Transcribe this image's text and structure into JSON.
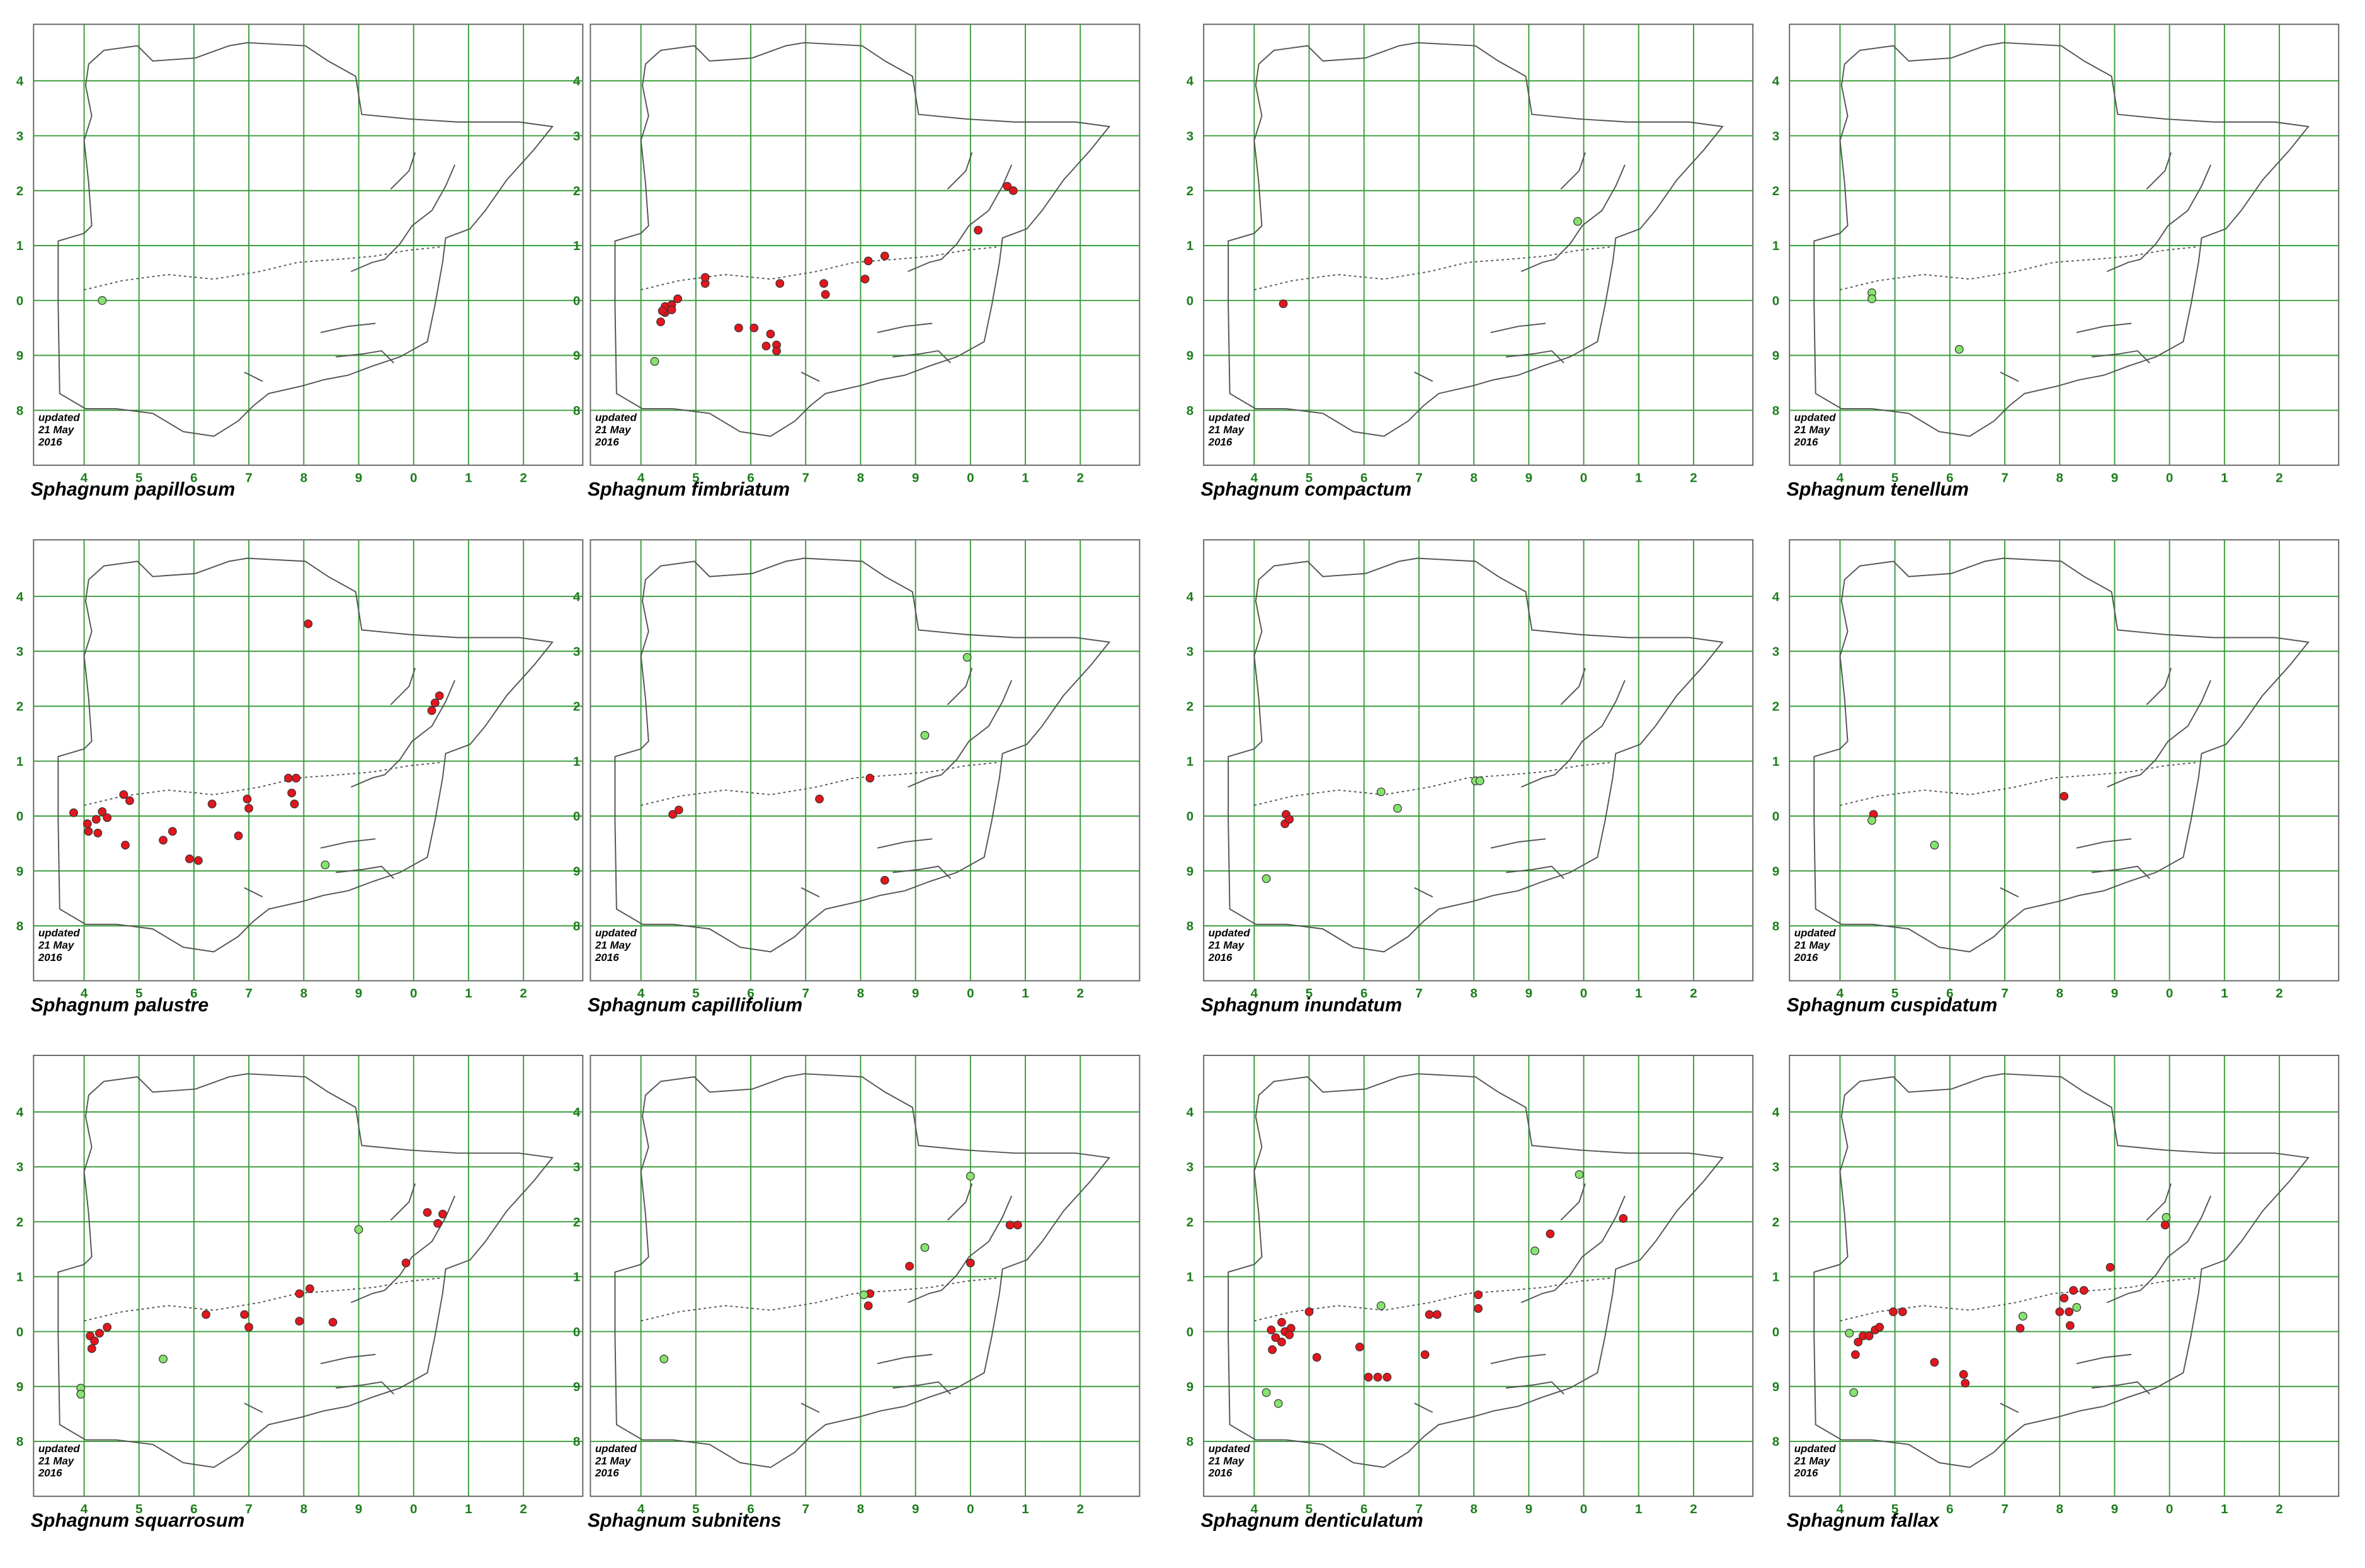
{
  "chart_data": [
    {
      "type": "scatter",
      "title": "Sphagnum papillosum",
      "note": [
        "updated",
        "21 May",
        "2016"
      ],
      "xlim": [
        3.08,
        13.08
      ],
      "ylim": [
        7,
        15.03
      ],
      "xticks": [
        4,
        5,
        6,
        7,
        8,
        9,
        {
          "value": 10,
          "label": "0"
        },
        {
          "value": 11,
          "label": "1"
        },
        {
          "value": 12,
          "label": "2"
        }
      ],
      "yticks": [
        8,
        9,
        {
          "value": 10,
          "label": "0"
        },
        {
          "value": 11,
          "label": "1"
        },
        {
          "value": 12,
          "label": "2"
        },
        {
          "value": 13,
          "label": "3"
        },
        {
          "value": 14,
          "label": "4"
        }
      ],
      "series": [
        {
          "color": "#e3161e",
          "x": [],
          "y": []
        },
        {
          "color": "#86e36e",
          "x": [
            4.33
          ],
          "y": [
            10.0
          ]
        }
      ]
    },
    {
      "type": "scatter",
      "title": "Sphagnum fimbriatum",
      "note": [
        "updated",
        "21 May",
        "2016"
      ],
      "xlim": [
        3.08,
        13.08
      ],
      "ylim": [
        7,
        15.03
      ],
      "xticks": [
        4,
        5,
        6,
        7,
        8,
        9,
        {
          "value": 10,
          "label": "0"
        },
        {
          "value": 11,
          "label": "1"
        },
        {
          "value": 12,
          "label": "2"
        }
      ],
      "yticks": [
        8,
        9,
        {
          "value": 10,
          "label": "0"
        },
        {
          "value": 11,
          "label": "1"
        },
        {
          "value": 12,
          "label": "2"
        },
        {
          "value": 13,
          "label": "3"
        },
        {
          "value": 14,
          "label": "4"
        }
      ],
      "series": [
        {
          "color": "#e3161e",
          "x": [
            4.36,
            4.44,
            4.44,
            4.56,
            4.67,
            4.56,
            4.39,
            5.17,
            5.17,
            6.53,
            7.33,
            7.36,
            8.08,
            8.14,
            8.44,
            5.78,
            6.06,
            6.28,
            6.36,
            6.47,
            6.47,
            10.14,
            10.67,
            10.78
          ],
          "y": [
            9.61,
            9.78,
            9.89,
            9.92,
            10.03,
            9.83,
            9.81,
            10.31,
            10.42,
            10.31,
            10.31,
            10.11,
            10.39,
            10.72,
            10.81,
            9.5,
            9.5,
            9.17,
            9.39,
            9.19,
            9.08,
            11.28,
            12.08,
            12.0
          ]
        },
        {
          "color": "#86e36e",
          "x": [
            4.25
          ],
          "y": [
            8.89
          ]
        }
      ]
    },
    {
      "type": "scatter",
      "title": "Sphagnum compactum",
      "note": [
        "updated",
        "21 May",
        "2016"
      ],
      "xlim": [
        3.08,
        13.08
      ],
      "ylim": [
        7,
        15.03
      ],
      "xticks": [
        4,
        5,
        6,
        7,
        8,
        9,
        {
          "value": 10,
          "label": "0"
        },
        {
          "value": 11,
          "label": "1"
        },
        {
          "value": 12,
          "label": "2"
        }
      ],
      "yticks": [
        8,
        9,
        {
          "value": 10,
          "label": "0"
        },
        {
          "value": 11,
          "label": "1"
        },
        {
          "value": 12,
          "label": "2"
        },
        {
          "value": 13,
          "label": "3"
        },
        {
          "value": 14,
          "label": "4"
        }
      ],
      "series": [
        {
          "color": "#e3161e",
          "x": [
            4.53
          ],
          "y": [
            9.94
          ]
        },
        {
          "color": "#86e36e",
          "x": [
            9.89
          ],
          "y": [
            11.44
          ]
        }
      ]
    },
    {
      "type": "scatter",
      "title": "Sphagnum tenellum",
      "note": [
        "updated",
        "21 May",
        "2016"
      ],
      "xlim": [
        3.08,
        13.08
      ],
      "ylim": [
        7,
        15.03
      ],
      "xticks": [
        4,
        5,
        6,
        7,
        8,
        9,
        {
          "value": 10,
          "label": "0"
        },
        {
          "value": 11,
          "label": "1"
        },
        {
          "value": 12,
          "label": "2"
        }
      ],
      "yticks": [
        8,
        9,
        {
          "value": 10,
          "label": "0"
        },
        {
          "value": 11,
          "label": "1"
        },
        {
          "value": 12,
          "label": "2"
        },
        {
          "value": 13,
          "label": "3"
        },
        {
          "value": 14,
          "label": "4"
        }
      ],
      "series": [
        {
          "color": "#e3161e",
          "x": [],
          "y": []
        },
        {
          "color": "#86e36e",
          "x": [
            4.58,
            4.58,
            6.17
          ],
          "y": [
            10.14,
            10.03,
            9.11
          ]
        }
      ]
    },
    {
      "type": "scatter",
      "title": "Sphagnum palustre",
      "note": [
        "updated",
        "21 May",
        "2016"
      ],
      "xlim": [
        3.08,
        13.08
      ],
      "ylim": [
        7,
        15.03
      ],
      "xticks": [
        4,
        5,
        6,
        7,
        8,
        9,
        {
          "value": 10,
          "label": "0"
        },
        {
          "value": 11,
          "label": "1"
        },
        {
          "value": 12,
          "label": "2"
        }
      ],
      "yticks": [
        8,
        9,
        {
          "value": 10,
          "label": "0"
        },
        {
          "value": 11,
          "label": "1"
        },
        {
          "value": 12,
          "label": "2"
        },
        {
          "value": 13,
          "label": "3"
        },
        {
          "value": 14,
          "label": "4"
        }
      ],
      "series": [
        {
          "color": "#e3161e",
          "x": [
            3.81,
            4.06,
            4.08,
            4.22,
            4.33,
            4.42,
            4.25,
            4.72,
            4.83,
            4.75,
            5.44,
            5.61,
            5.92,
            6.08,
            6.33,
            6.81,
            6.97,
            7.0,
            7.72,
            7.86,
            7.78,
            7.83,
            8.08,
            10.39,
            10.47,
            10.33
          ],
          "y": [
            10.06,
            9.86,
            9.72,
            9.94,
            10.08,
            9.97,
            9.69,
            10.39,
            10.28,
            9.47,
            9.56,
            9.72,
            9.22,
            9.19,
            10.22,
            9.64,
            10.31,
            10.14,
            10.69,
            10.69,
            10.42,
            10.22,
            13.5,
            12.06,
            12.19,
            11.92
          ]
        },
        {
          "color": "#86e36e",
          "x": [
            8.39
          ],
          "y": [
            9.11
          ]
        }
      ]
    },
    {
      "type": "scatter",
      "title": "Sphagnum capillifolium",
      "note": [
        "updated",
        "21 May",
        "2016"
      ],
      "xlim": [
        3.08,
        13.08
      ],
      "ylim": [
        7,
        15.03
      ],
      "xticks": [
        4,
        5,
        6,
        7,
        8,
        9,
        {
          "value": 10,
          "label": "0"
        },
        {
          "value": 11,
          "label": "1"
        },
        {
          "value": 12,
          "label": "2"
        }
      ],
      "yticks": [
        8,
        9,
        {
          "value": 10,
          "label": "0"
        },
        {
          "value": 11,
          "label": "1"
        },
        {
          "value": 12,
          "label": "2"
        },
        {
          "value": 13,
          "label": "3"
        },
        {
          "value": 14,
          "label": "4"
        }
      ],
      "series": [
        {
          "color": "#e3161e",
          "x": [
            4.58,
            4.69,
            7.25,
            8.17,
            8.44
          ],
          "y": [
            10.03,
            10.11,
            10.31,
            10.69,
            8.83
          ]
        },
        {
          "color": "#86e36e",
          "x": [
            9.17,
            9.94
          ],
          "y": [
            11.47,
            12.89
          ]
        }
      ]
    },
    {
      "type": "scatter",
      "title": "Sphagnum inundatum",
      "note": [
        "updated",
        "21 May",
        "2016"
      ],
      "xlim": [
        3.08,
        13.08
      ],
      "ylim": [
        7,
        15.03
      ],
      "xticks": [
        4,
        5,
        6,
        7,
        8,
        9,
        {
          "value": 10,
          "label": "0"
        },
        {
          "value": 11,
          "label": "1"
        },
        {
          "value": 12,
          "label": "2"
        }
      ],
      "yticks": [
        8,
        9,
        {
          "value": 10,
          "label": "0"
        },
        {
          "value": 11,
          "label": "1"
        },
        {
          "value": 12,
          "label": "2"
        },
        {
          "value": 13,
          "label": "3"
        },
        {
          "value": 14,
          "label": "4"
        }
      ],
      "series": [
        {
          "color": "#e3161e",
          "x": [
            4.58,
            4.56,
            4.64
          ],
          "y": [
            10.03,
            9.86,
            9.94
          ]
        },
        {
          "color": "#86e36e",
          "x": [
            4.22,
            6.31,
            6.61,
            8.03,
            8.11
          ],
          "y": [
            8.86,
            10.44,
            10.14,
            10.64,
            10.64
          ]
        }
      ]
    },
    {
      "type": "scatter",
      "title": "Sphagnum cuspidatum",
      "note": [
        "updated",
        "21 May",
        "2016"
      ],
      "xlim": [
        3.08,
        13.08
      ],
      "ylim": [
        7,
        15.03
      ],
      "xticks": [
        4,
        5,
        6,
        7,
        8,
        9,
        {
          "value": 10,
          "label": "0"
        },
        {
          "value": 11,
          "label": "1"
        },
        {
          "value": 12,
          "label": "2"
        }
      ],
      "yticks": [
        8,
        9,
        {
          "value": 10,
          "label": "0"
        },
        {
          "value": 11,
          "label": "1"
        },
        {
          "value": 12,
          "label": "2"
        },
        {
          "value": 13,
          "label": "3"
        },
        {
          "value": 14,
          "label": "4"
        }
      ],
      "series": [
        {
          "color": "#e3161e",
          "x": [
            4.61,
            8.08
          ],
          "y": [
            10.03,
            10.36
          ]
        },
        {
          "color": "#86e36e",
          "x": [
            4.58,
            5.72
          ],
          "y": [
            9.92,
            9.47
          ]
        }
      ]
    },
    {
      "type": "scatter",
      "title": "Sphagnum squarrosum",
      "note": [
        "updated",
        "21 May",
        "2016"
      ],
      "xlim": [
        3.08,
        13.08
      ],
      "ylim": [
        7,
        15.03
      ],
      "xticks": [
        4,
        5,
        6,
        7,
        8,
        9,
        {
          "value": 10,
          "label": "0"
        },
        {
          "value": 11,
          "label": "1"
        },
        {
          "value": 12,
          "label": "2"
        }
      ],
      "yticks": [
        8,
        9,
        {
          "value": 10,
          "label": "0"
        },
        {
          "value": 11,
          "label": "1"
        },
        {
          "value": 12,
          "label": "2"
        },
        {
          "value": 13,
          "label": "3"
        },
        {
          "value": 14,
          "label": "4"
        }
      ],
      "series": [
        {
          "color": "#e3161e",
          "x": [
            4.11,
            4.19,
            4.14,
            4.28,
            4.42,
            6.22,
            6.92,
            7.0,
            7.92,
            8.11,
            7.92,
            8.53,
            9.86,
            10.25,
            10.44,
            10.53
          ],
          "y": [
            9.92,
            9.83,
            9.69,
            9.97,
            10.08,
            10.31,
            10.31,
            10.08,
            10.69,
            10.78,
            10.19,
            10.17,
            11.25,
            12.17,
            11.97,
            12.14
          ]
        },
        {
          "color": "#86e36e",
          "x": [
            9.0,
            3.94,
            3.94,
            5.44
          ],
          "y": [
            11.86,
            8.97,
            8.86,
            9.5
          ]
        }
      ]
    },
    {
      "type": "scatter",
      "title": "Sphagnum subnitens",
      "note": [
        "updated",
        "21 May",
        "2016"
      ],
      "xlim": [
        3.08,
        13.08
      ],
      "ylim": [
        7,
        15.03
      ],
      "xticks": [
        4,
        5,
        6,
        7,
        8,
        9,
        {
          "value": 10,
          "label": "0"
        },
        {
          "value": 11,
          "label": "1"
        },
        {
          "value": 12,
          "label": "2"
        }
      ],
      "yticks": [
        8,
        9,
        {
          "value": 10,
          "label": "0"
        },
        {
          "value": 11,
          "label": "1"
        },
        {
          "value": 12,
          "label": "2"
        },
        {
          "value": 13,
          "label": "3"
        },
        {
          "value": 14,
          "label": "4"
        }
      ],
      "series": [
        {
          "color": "#e3161e",
          "x": [
            8.14,
            8.17,
            8.89,
            10.0,
            10.72,
            10.86
          ],
          "y": [
            10.47,
            10.69,
            11.19,
            11.25,
            11.94,
            11.94
          ]
        },
        {
          "color": "#86e36e",
          "x": [
            8.06,
            9.17,
            10.0,
            4.42
          ],
          "y": [
            10.67,
            11.53,
            12.83,
            9.5
          ]
        }
      ]
    },
    {
      "type": "scatter",
      "title": "Sphagnum denticulatum",
      "note": [
        "updated",
        "21 May",
        "2016"
      ],
      "xlim": [
        3.08,
        13.08
      ],
      "ylim": [
        7,
        15.03
      ],
      "xticks": [
        4,
        5,
        6,
        7,
        8,
        9,
        {
          "value": 10,
          "label": "0"
        },
        {
          "value": 11,
          "label": "1"
        },
        {
          "value": 12,
          "label": "2"
        }
      ],
      "yticks": [
        8,
        9,
        {
          "value": 10,
          "label": "0"
        },
        {
          "value": 11,
          "label": "1"
        },
        {
          "value": 12,
          "label": "2"
        },
        {
          "value": 13,
          "label": "3"
        },
        {
          "value": 14,
          "label": "4"
        }
      ],
      "series": [
        {
          "color": "#e3161e",
          "x": [
            4.31,
            4.39,
            4.5,
            4.56,
            4.67,
            4.33,
            4.5,
            4.64,
            5.0,
            5.14,
            5.92,
            6.08,
            6.25,
            6.42,
            7.11,
            7.19,
            7.33,
            8.08,
            8.08,
            9.39,
            10.72
          ],
          "y": [
            10.03,
            9.89,
            9.81,
            10.0,
            10.06,
            9.67,
            10.17,
            9.94,
            10.36,
            9.53,
            9.72,
            9.17,
            9.17,
            9.17,
            9.58,
            10.31,
            10.31,
            10.67,
            10.42,
            11.78,
            12.06
          ]
        },
        {
          "color": "#86e36e",
          "x": [
            4.22,
            4.44,
            6.31,
            9.11,
            9.92
          ],
          "y": [
            8.89,
            8.69,
            10.47,
            11.47,
            12.86
          ]
        }
      ]
    },
    {
      "type": "scatter",
      "title": "Sphagnum fallax",
      "note": [
        "updated",
        "21 May",
        "2016"
      ],
      "xlim": [
        3.08,
        13.08
      ],
      "ylim": [
        7,
        15.03
      ],
      "xticks": [
        4,
        5,
        6,
        7,
        8,
        9,
        {
          "value": 10,
          "label": "0"
        },
        {
          "value": 11,
          "label": "1"
        },
        {
          "value": 12,
          "label": "2"
        }
      ],
      "yticks": [
        8,
        9,
        {
          "value": 10,
          "label": "0"
        },
        {
          "value": 11,
          "label": "1"
        },
        {
          "value": 12,
          "label": "2"
        },
        {
          "value": 13,
          "label": "3"
        },
        {
          "value": 14,
          "label": "4"
        }
      ],
      "series": [
        {
          "color": "#e3161e",
          "x": [
            4.33,
            4.42,
            4.53,
            4.64,
            4.72,
            4.28,
            4.97,
            5.14,
            5.72,
            6.25,
            6.28,
            7.28,
            8.0,
            8.17,
            8.19,
            8.08,
            8.25,
            8.44,
            8.92,
            9.92
          ],
          "y": [
            9.81,
            9.92,
            9.92,
            10.03,
            10.08,
            9.58,
            10.36,
            10.36,
            9.44,
            9.22,
            9.06,
            10.06,
            10.36,
            10.36,
            10.11,
            10.61,
            10.75,
            10.75,
            11.17,
            11.94
          ]
        },
        {
          "color": "#86e36e",
          "x": [
            4.17,
            4.25,
            7.33,
            8.31,
            9.94
          ],
          "y": [
            9.97,
            8.89,
            10.28,
            10.44,
            12.08
          ]
        }
      ]
    }
  ]
}
